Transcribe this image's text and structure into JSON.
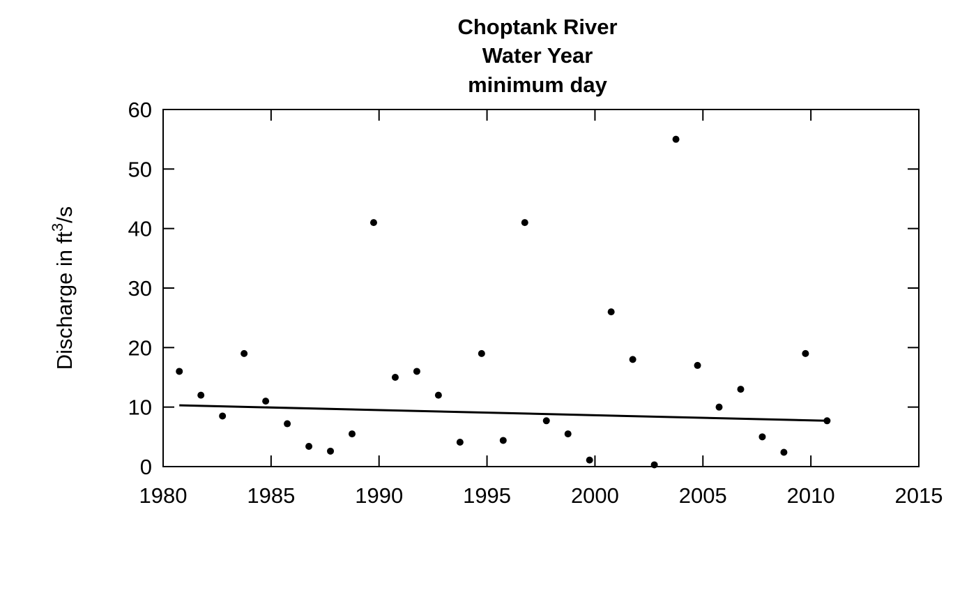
{
  "chart_data": {
    "type": "scatter",
    "title_lines": [
      "Choptank River",
      "Water Year",
      "minimum day"
    ],
    "xlabel": "",
    "ylabel_parts": [
      "Discharge in ft",
      "3",
      "/s"
    ],
    "xlim": [
      1980,
      2015
    ],
    "ylim": [
      0,
      60
    ],
    "xticks": [
      1980,
      1985,
      1990,
      1995,
      2000,
      2005,
      2010,
      2015
    ],
    "yticks": [
      0,
      10,
      20,
      30,
      40,
      50,
      60
    ],
    "grid": false,
    "legend": "none",
    "point_color": "#000000",
    "line_color": "#000000",
    "series": [
      {
        "x": [
          1980.75,
          1981.75,
          1982.75,
          1983.75,
          1984.75,
          1985.75,
          1986.75,
          1987.75,
          1988.75,
          1989.75,
          1990.75,
          1991.75,
          1992.75,
          1993.75,
          1994.75,
          1995.75,
          1996.75,
          1997.75,
          1998.75,
          1999.75,
          2000.75,
          2001.75,
          2002.75,
          2003.75,
          2004.75,
          2005.75,
          2006.75,
          2007.75,
          2008.75,
          2009.75,
          2010.75
        ],
        "y": [
          16,
          12,
          8.5,
          19,
          11,
          7.2,
          3.4,
          2.6,
          5.5,
          41,
          15,
          16,
          12,
          4.1,
          19,
          4.4,
          41,
          7.7,
          5.5,
          1.1,
          26,
          18,
          0.3,
          55,
          17,
          10,
          13,
          5,
          2.4,
          19,
          7.7
        ]
      }
    ],
    "trend_line": {
      "x": [
        1980.75,
        2010.75
      ],
      "y": [
        10.3,
        7.7
      ]
    }
  }
}
